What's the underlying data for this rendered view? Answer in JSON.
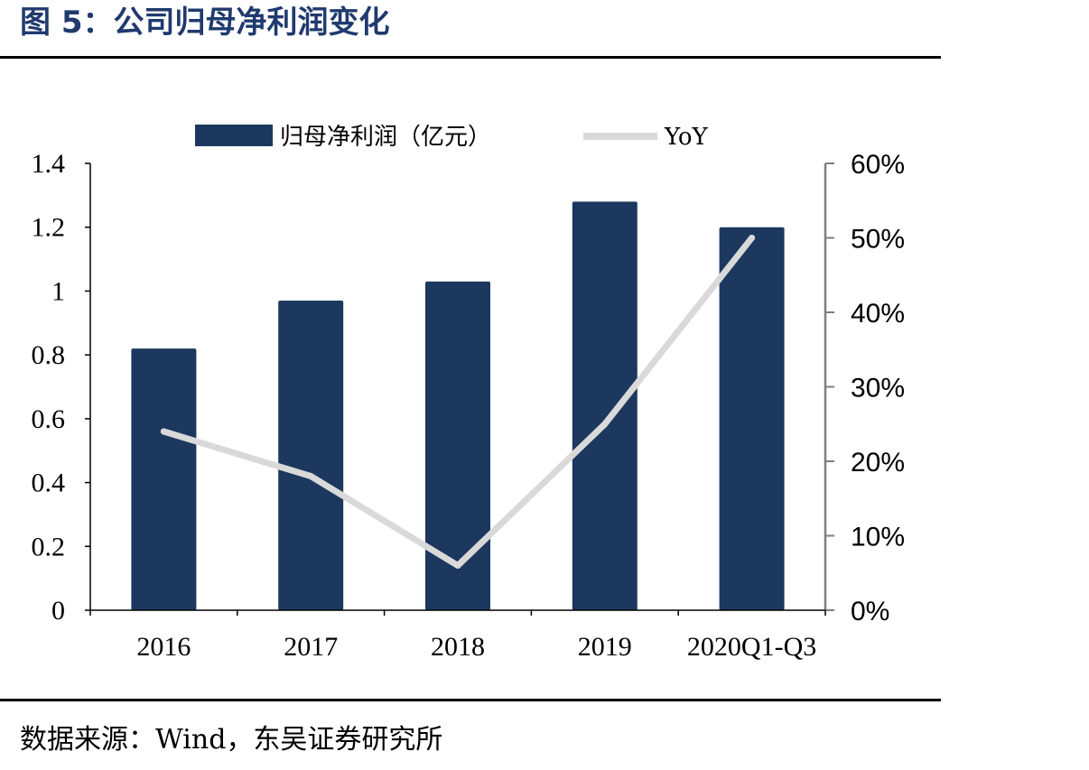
{
  "figure": {
    "title": "图 5：公司归母净利润变化",
    "source": "数据来源：Wind，东吴证券研究所"
  },
  "colors": {
    "bar": "#1c385e",
    "line": "#d9d9d9",
    "axis": "#000000",
    "right_axis": "#7f7f7f",
    "title": "#1f3a6e"
  },
  "chart_data": {
    "type": "bar",
    "categories": [
      "2016",
      "2017",
      "2018",
      "2019",
      "2020Q1-Q3"
    ],
    "series": [
      {
        "name": "归母净利润（亿元）",
        "type": "bar",
        "axis": "left",
        "values": [
          0.82,
          0.97,
          1.03,
          1.28,
          1.2
        ]
      },
      {
        "name": "YoY",
        "type": "line",
        "axis": "right",
        "values": [
          0.24,
          0.18,
          0.06,
          0.25,
          0.5
        ]
      }
    ],
    "y_left": {
      "ylim": [
        0,
        1.4
      ],
      "ticks": [
        "0",
        "0.2",
        "0.4",
        "0.6",
        "0.8",
        "1",
        "1.2",
        "1.4"
      ]
    },
    "y_right": {
      "ylim": [
        0,
        0.6
      ],
      "ticks": [
        "0%",
        "10%",
        "20%",
        "30%",
        "40%",
        "50%",
        "60%"
      ]
    },
    "legend": "top",
    "grid": false
  }
}
